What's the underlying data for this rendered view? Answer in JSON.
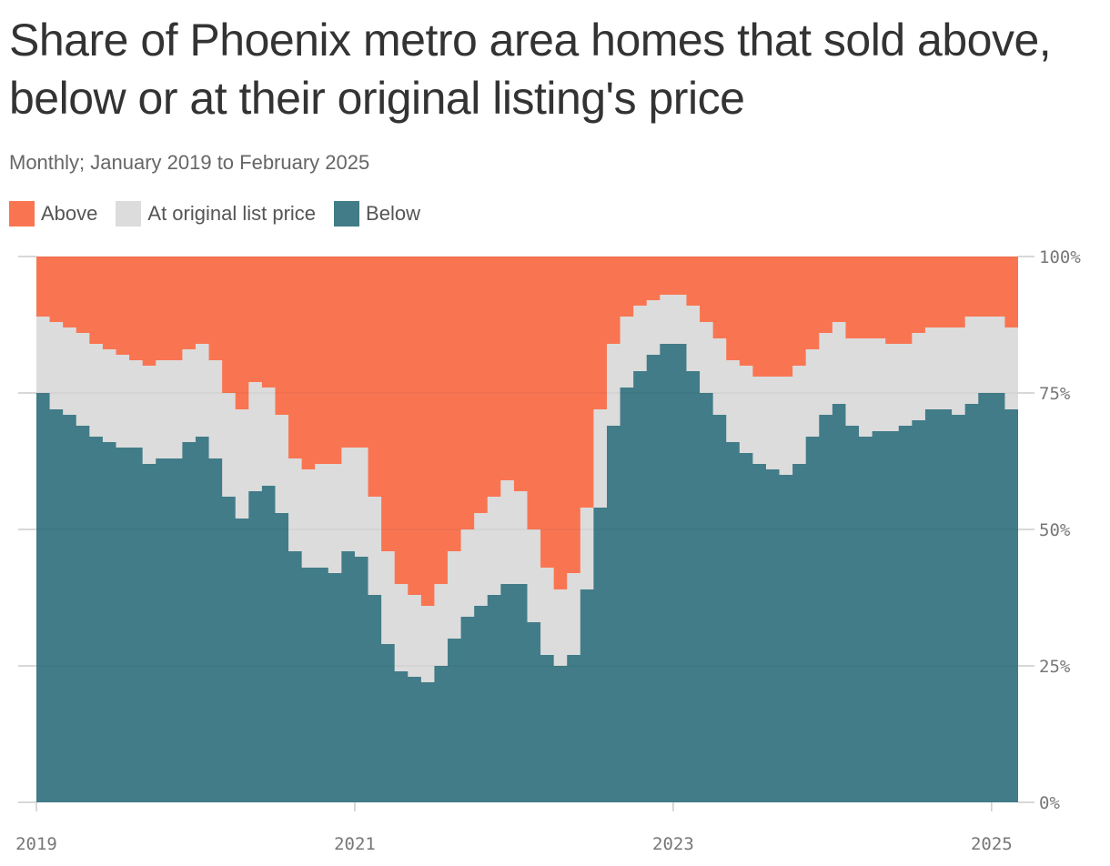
{
  "title": "Share of Phoenix metro area homes that sold above, below or at their original listing's price",
  "subtitle": "Monthly; January 2019 to February 2025",
  "colors": {
    "above": "#f97552",
    "at": "#dcdcdc",
    "below": "#417c88",
    "tick": "#cccccc"
  },
  "legend": [
    {
      "key": "above",
      "label": "Above"
    },
    {
      "key": "at",
      "label": "At original list price"
    },
    {
      "key": "below",
      "label": "Below"
    }
  ],
  "chart_data": {
    "type": "area",
    "stacked": true,
    "x_start": "2019-01",
    "x_end": "2025-02",
    "xticks": [
      "2019",
      "2021",
      "2023",
      "2025"
    ],
    "yticks": [
      "0%",
      "25%",
      "50%",
      "75%",
      "100%"
    ],
    "ylim": [
      0,
      100
    ],
    "series": [
      {
        "name": "Below",
        "values": [
          75,
          72,
          71,
          69,
          67,
          66,
          65,
          65,
          62,
          63,
          63,
          66,
          67,
          63,
          56,
          52,
          57,
          58,
          53,
          46,
          43,
          43,
          42,
          46,
          45,
          38,
          29,
          24,
          23,
          22,
          25,
          30,
          34,
          36,
          38,
          40,
          40,
          33,
          27,
          25,
          27,
          39,
          54,
          69,
          76,
          79,
          82,
          84,
          84,
          79,
          75,
          71,
          66,
          64,
          62,
          61,
          60,
          62,
          67,
          71,
          73,
          69,
          67,
          68,
          68,
          69,
          70,
          72,
          72,
          71,
          73,
          75,
          75,
          72
        ]
      },
      {
        "name": "At original list price",
        "values": [
          14,
          16,
          16,
          17,
          17,
          17,
          17,
          16,
          18,
          18,
          18,
          17,
          17,
          18,
          19,
          20,
          20,
          18,
          18,
          17,
          18,
          19,
          20,
          19,
          20,
          18,
          17,
          16,
          15,
          14,
          15,
          16,
          16,
          17,
          18,
          19,
          17,
          17,
          16,
          14,
          15,
          15,
          18,
          15,
          13,
          12,
          10,
          9,
          9,
          12,
          13,
          14,
          15,
          16,
          16,
          17,
          18,
          18,
          16,
          15,
          15,
          16,
          18,
          17,
          16,
          15,
          16,
          15,
          15,
          16,
          16,
          14,
          14,
          15
        ]
      },
      {
        "name": "Above",
        "values": [
          11,
          12,
          13,
          14,
          16,
          17,
          18,
          19,
          20,
          19,
          19,
          17,
          16,
          19,
          25,
          28,
          23,
          24,
          29,
          37,
          39,
          38,
          38,
          35,
          37,
          44,
          54,
          60,
          62,
          64,
          60,
          54,
          50,
          47,
          44,
          41,
          43,
          50,
          57,
          61,
          58,
          46,
          28,
          16,
          11,
          9,
          8,
          7,
          7,
          9,
          12,
          15,
          19,
          20,
          22,
          22,
          22,
          20,
          17,
          14,
          12,
          15,
          15,
          15,
          16,
          16,
          14,
          13,
          13,
          13,
          11,
          11,
          11,
          13
        ]
      }
    ]
  }
}
